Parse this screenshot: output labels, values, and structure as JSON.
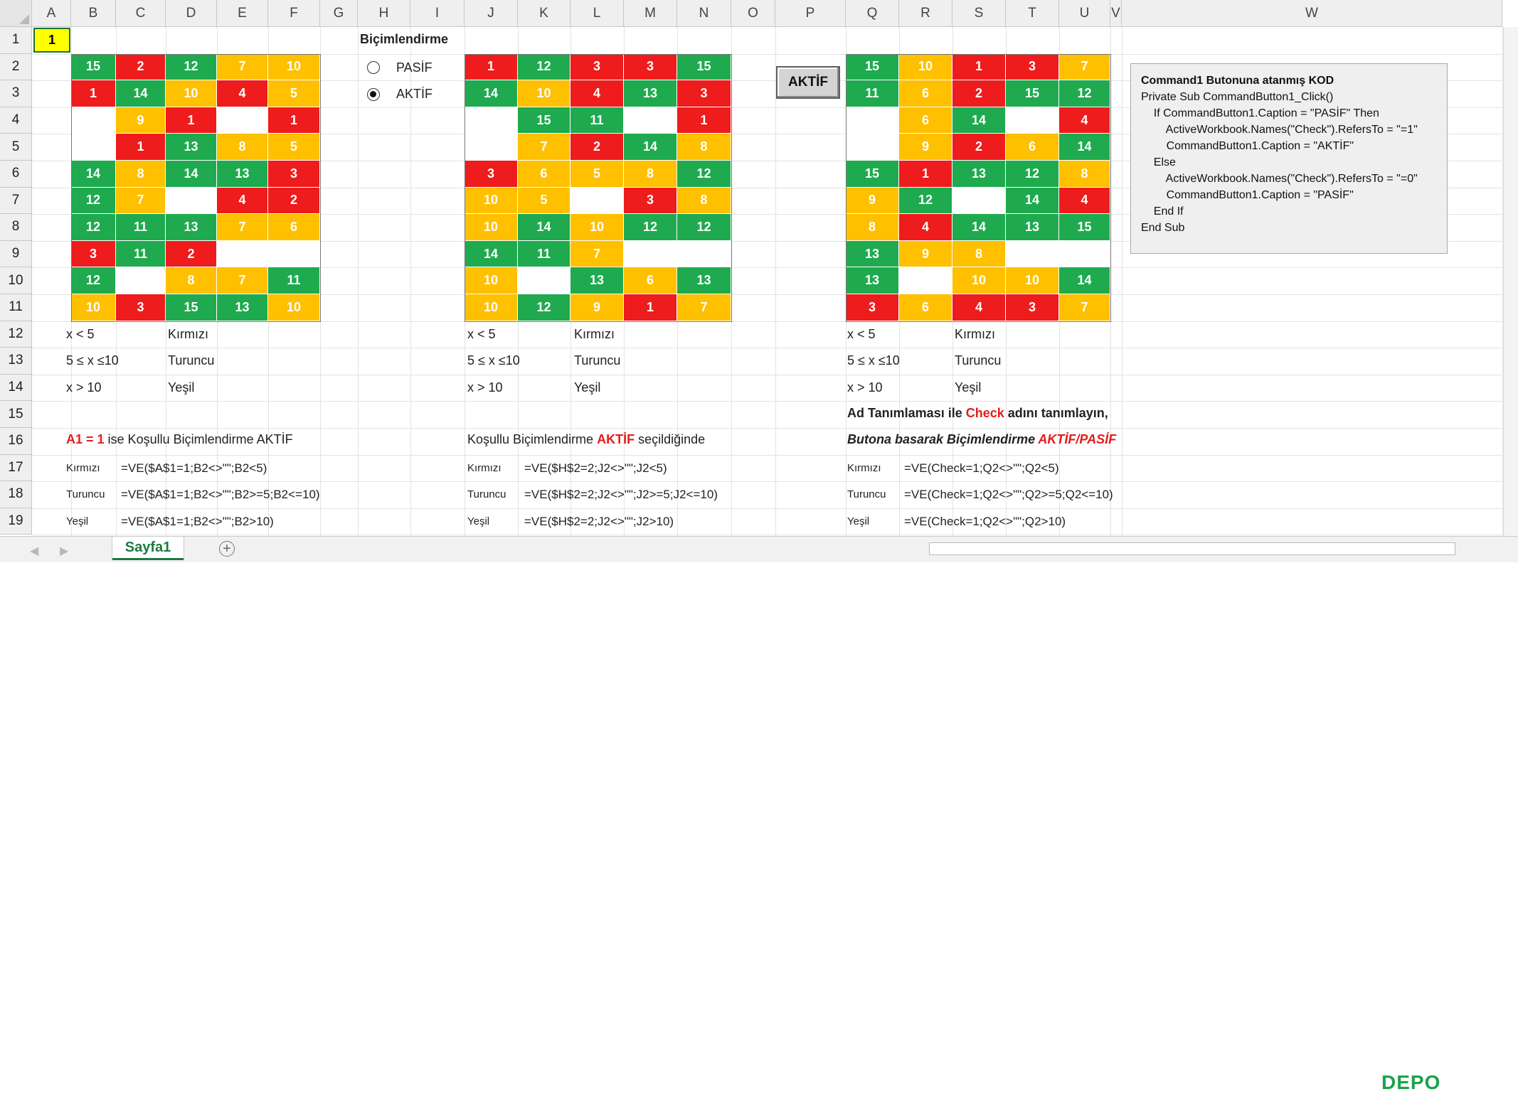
{
  "columns": [
    "A",
    "B",
    "C",
    "D",
    "E",
    "F",
    "G",
    "H",
    "I",
    "J",
    "K",
    "L",
    "M",
    "N",
    "O",
    "P",
    "Q",
    "R",
    "S",
    "T",
    "U",
    "V",
    "W"
  ],
  "rows": [
    "1",
    "2",
    "3",
    "4",
    "5",
    "6",
    "7",
    "8",
    "9",
    "10",
    "11",
    "12",
    "13",
    "14",
    "15",
    "16",
    "17",
    "18",
    "19"
  ],
  "a1_value": "1",
  "radio": {
    "title": "Biçimlendirme",
    "options": [
      {
        "label": "PASİF",
        "selected": false
      },
      {
        "label": "AKTİF",
        "selected": true
      }
    ]
  },
  "button": {
    "caption": "AKTİF"
  },
  "grids": [
    {
      "values": [
        [
          "15",
          "2",
          "12",
          "7",
          "10"
        ],
        [
          "1",
          "14",
          "10",
          "4",
          "5"
        ],
        [
          "",
          "9",
          "1",
          "",
          "1"
        ],
        [
          "",
          "1",
          "13",
          "8",
          "5"
        ],
        [
          "14",
          "8",
          "14",
          "13",
          "3"
        ],
        [
          "12",
          "7",
          "",
          "4",
          "2"
        ],
        [
          "12",
          "11",
          "13",
          "7",
          "6"
        ],
        [
          "3",
          "11",
          "2",
          "",
          ""
        ],
        [
          "12",
          "",
          "8",
          "7",
          "11"
        ],
        [
          "10",
          "3",
          "15",
          "13",
          "10"
        ]
      ],
      "colors": [
        [
          "g",
          "r",
          "g",
          "o",
          "o"
        ],
        [
          "r",
          "g",
          "o",
          "r",
          "o"
        ],
        [
          "w",
          "o",
          "r",
          "w",
          "r"
        ],
        [
          "w",
          "r",
          "g",
          "o",
          "o"
        ],
        [
          "g",
          "o",
          "g",
          "g",
          "r"
        ],
        [
          "g",
          "o",
          "w",
          "r",
          "r"
        ],
        [
          "g",
          "g",
          "g",
          "o",
          "o"
        ],
        [
          "r",
          "g",
          "r",
          "w",
          "w"
        ],
        [
          "g",
          "w",
          "o",
          "o",
          "g"
        ],
        [
          "o",
          "r",
          "g",
          "g",
          "o"
        ]
      ]
    },
    {
      "values": [
        [
          "1",
          "12",
          "3",
          "3",
          "15"
        ],
        [
          "14",
          "10",
          "4",
          "13",
          "3"
        ],
        [
          "",
          "15",
          "11",
          "",
          "1"
        ],
        [
          "",
          "7",
          "2",
          "14",
          "8"
        ],
        [
          "3",
          "6",
          "5",
          "8",
          "12"
        ],
        [
          "10",
          "5",
          "",
          "3",
          "8"
        ],
        [
          "10",
          "14",
          "10",
          "12",
          "12"
        ],
        [
          "14",
          "11",
          "7",
          "",
          ""
        ],
        [
          "10",
          "",
          "13",
          "6",
          "13"
        ],
        [
          "10",
          "12",
          "9",
          "1",
          "7"
        ]
      ],
      "colors": [
        [
          "r",
          "g",
          "r",
          "r",
          "g"
        ],
        [
          "g",
          "o",
          "r",
          "g",
          "r"
        ],
        [
          "w",
          "g",
          "g",
          "w",
          "r"
        ],
        [
          "w",
          "o",
          "r",
          "g",
          "o"
        ],
        [
          "r",
          "o",
          "o",
          "o",
          "g"
        ],
        [
          "o",
          "o",
          "w",
          "r",
          "o"
        ],
        [
          "o",
          "g",
          "o",
          "g",
          "g"
        ],
        [
          "g",
          "g",
          "o",
          "w",
          "w"
        ],
        [
          "o",
          "w",
          "g",
          "o",
          "g"
        ],
        [
          "o",
          "g",
          "o",
          "r",
          "o"
        ]
      ]
    },
    {
      "values": [
        [
          "15",
          "10",
          "1",
          "3",
          "7"
        ],
        [
          "11",
          "6",
          "2",
          "15",
          "12"
        ],
        [
          "",
          "6",
          "14",
          "",
          "4"
        ],
        [
          "",
          "9",
          "2",
          "6",
          "14"
        ],
        [
          "15",
          "1",
          "13",
          "12",
          "8"
        ],
        [
          "9",
          "12",
          "",
          "14",
          "4"
        ],
        [
          "8",
          "4",
          "14",
          "13",
          "15"
        ],
        [
          "13",
          "9",
          "8",
          "",
          ""
        ],
        [
          "13",
          "",
          "10",
          "10",
          "14"
        ],
        [
          "3",
          "6",
          "4",
          "3",
          "7"
        ]
      ],
      "colors": [
        [
          "g",
          "o",
          "r",
          "r",
          "o"
        ],
        [
          "g",
          "o",
          "r",
          "g",
          "g"
        ],
        [
          "w",
          "o",
          "g",
          "w",
          "r"
        ],
        [
          "w",
          "o",
          "r",
          "o",
          "g"
        ],
        [
          "g",
          "r",
          "g",
          "g",
          "o"
        ],
        [
          "o",
          "g",
          "w",
          "g",
          "r"
        ],
        [
          "o",
          "r",
          "g",
          "g",
          "g"
        ],
        [
          "g",
          "o",
          "o",
          "w",
          "w"
        ],
        [
          "g",
          "w",
          "o",
          "o",
          "g"
        ],
        [
          "r",
          "o",
          "r",
          "r",
          "o"
        ]
      ]
    }
  ],
  "legend": [
    {
      "cond": "x < 5",
      "name": "Kırmızı"
    },
    {
      "cond": "5 ≤  x ≤10",
      "name": "Turuncu"
    },
    {
      "cond": "x > 10",
      "name": "Yeşil"
    }
  ],
  "block1": {
    "title_a1": "A1 = 1",
    "title_rest": " ise Koşullu Biçimlendirme AKTİF",
    "formulas": [
      {
        "label": "Kırmızı",
        "formula": "=VE($A$1=1;B2<>\"\";B2<5)"
      },
      {
        "label": "Turuncu",
        "formula": "=VE($A$1=1;B2<>\"\";B2>=5;B2<=10)"
      },
      {
        "label": "Yeşil",
        "formula": "=VE($A$1=1;B2<>\"\";B2>10)"
      }
    ]
  },
  "block2": {
    "title_pre": "Koşullu Biçimlendirme ",
    "title_hl": "AKTİF",
    "title_post": " seçildiğinde",
    "formulas": [
      {
        "label": "Kırmızı",
        "formula": "=VE($H$2=2;J2<>\"\";J2<5)"
      },
      {
        "label": "Turuncu",
        "formula": "=VE($H$2=2;J2<>\"\";J2>=5;J2<=10)"
      },
      {
        "label": "Yeşil",
        "formula": "=VE($H$2=2;J2<>\"\";J2>10)"
      }
    ]
  },
  "block3": {
    "line1_pre": "Ad Tanımlaması ile ",
    "line1_hl": "Check",
    "line1_post": " adını tanımlayın,",
    "line2_pre": "Butona basarak Biçimlendirme ",
    "line2_hl": "AKTİF/PASİF",
    "formulas": [
      {
        "label": "Kırmızı",
        "formula": "=VE(Check=1;Q2<>\"\";Q2<5)"
      },
      {
        "label": "Turuncu",
        "formula": "=VE(Check=1;Q2<>\"\";Q2>=5;Q2<=10)"
      },
      {
        "label": "Yeşil",
        "formula": "=VE(Check=1;Q2<>\"\";Q2>10)"
      }
    ]
  },
  "code": {
    "title": "Command1 Butonuna atanmış KOD",
    "lines": [
      "Private Sub CommandButton1_Click()",
      "    If CommandButton1.Caption = \"PASİF\" Then",
      "        ActiveWorkbook.Names(\"Check\").RefersTo = \"=1\"",
      "        CommandButton1.Caption = \"AKTİF\"",
      "    Else",
      "        ActiveWorkbook.Names(\"Check\").RefersTo = \"=0\"",
      "        CommandButton1.Caption = \"PASİF\"",
      "    End If",
      "End Sub"
    ]
  },
  "sheet_tab": "Sayfa1",
  "add_sheet": "+",
  "nav_prev": "◀",
  "nav_next": "▶",
  "watermark": "DEPO"
}
